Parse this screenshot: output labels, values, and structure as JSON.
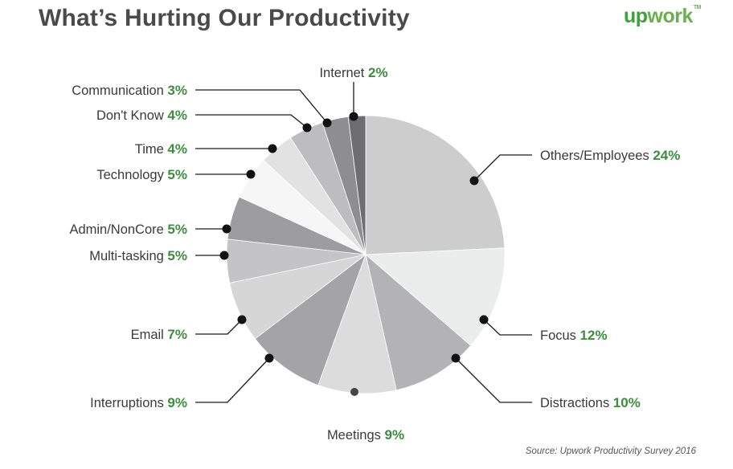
{
  "header": {
    "title": "What’s Hurting Our Productivity",
    "logo_up": "up",
    "logo_work": "work",
    "logo_tm": "TM"
  },
  "footer": {
    "source": "Source: Upwork Productivity Survey 2016"
  },
  "colors": {
    "accent_green": "#3c8d3c",
    "leader_line": "#1a1a1a",
    "slice_border": "#ffffff"
  },
  "chart_data": {
    "type": "pie",
    "title": "What’s Hurting Our Productivity",
    "start_angle_deg": 0,
    "direction": "clockwise",
    "slices": [
      {
        "label": "Others/Employees",
        "pct_label": "24%",
        "value": 24,
        "color": "#cdcdce"
      },
      {
        "label": "Focus",
        "pct_label": "12%",
        "value": 12,
        "color": "#ebecec"
      },
      {
        "label": "Distractions",
        "pct_label": "10%",
        "value": 10,
        "color": "#b3b3b5"
      },
      {
        "label": "Meetings",
        "pct_label": "9%",
        "value": 9,
        "color": "#dcdcdd"
      },
      {
        "label": "Interruptions",
        "pct_label": "9%",
        "value": 9,
        "color": "#a4a4a7"
      },
      {
        "label": "Email",
        "pct_label": "7%",
        "value": 7,
        "color": "#d6d6d7"
      },
      {
        "label": "Multi-tasking",
        "pct_label": "5%",
        "value": 5,
        "color": "#c4c4c6"
      },
      {
        "label": "Admin/NonCore",
        "pct_label": "5%",
        "value": 5,
        "color": "#9d9da0"
      },
      {
        "label": "Technology",
        "pct_label": "5%",
        "value": 5,
        "color": "#f6f6f6"
      },
      {
        "label": "Time",
        "pct_label": "4%",
        "value": 4,
        "color": "#e2e2e3"
      },
      {
        "label": "Don't Know",
        "pct_label": "4%",
        "value": 4,
        "color": "#bdbdbf"
      },
      {
        "label": "Communication",
        "pct_label": "3%",
        "value": 3,
        "color": "#8e8e91"
      },
      {
        "label": "Internet",
        "pct_label": "2%",
        "value": 2,
        "color": "#6e6e71"
      }
    ]
  }
}
